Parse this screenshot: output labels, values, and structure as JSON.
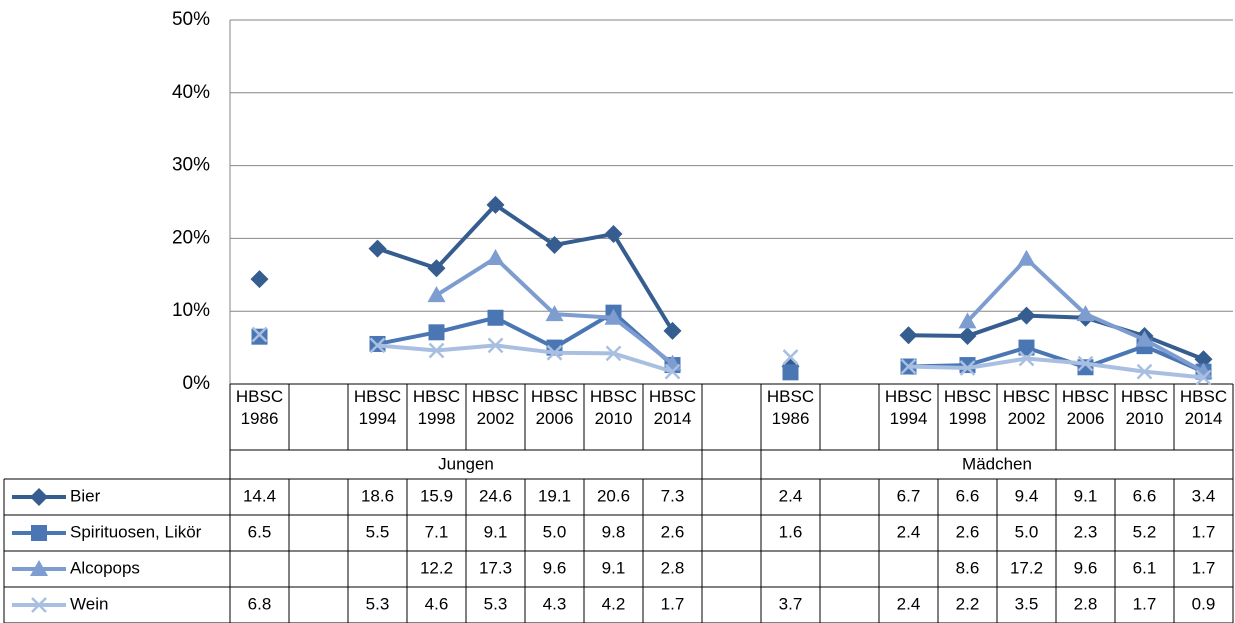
{
  "chart_data": {
    "type": "line",
    "categories": [
      "HBSC 1986",
      null,
      "HBSC 1994",
      "HBSC 1998",
      "HBSC 2002",
      "HBSC 2006",
      "HBSC 2010",
      "HBSC 2014",
      null,
      "HBSC 1986",
      null,
      "HBSC 1994",
      "HBSC 1998",
      "HBSC 2002",
      "HBSC 2006",
      "HBSC 2010",
      "HBSC 2014"
    ],
    "groups": [
      "Jungen",
      "Mädchen"
    ],
    "ylim": [
      0,
      50
    ],
    "yticks": [
      {
        "value": 0,
        "label": "0%"
      },
      {
        "value": 10,
        "label": "10%"
      },
      {
        "value": 20,
        "label": "20%"
      },
      {
        "value": 30,
        "label": "30%"
      },
      {
        "value": 40,
        "label": "40%"
      },
      {
        "value": 50,
        "label": "50%"
      }
    ],
    "grid": true,
    "series": [
      {
        "name": "Bier",
        "color": "#355d8f",
        "marker": "diamond",
        "values": [
          14.4,
          null,
          18.6,
          15.9,
          24.6,
          19.1,
          20.6,
          7.3,
          null,
          2.4,
          null,
          6.7,
          6.6,
          9.4,
          9.1,
          6.6,
          3.4
        ],
        "value_labels": [
          "14.4",
          null,
          "18.6",
          "15.9",
          "24.6",
          "19.1",
          "20.6",
          "7.3",
          null,
          "2.4",
          null,
          "6.7",
          "6.6",
          "9.4",
          "9.1",
          "6.6",
          "3.4"
        ]
      },
      {
        "name": "Spirituosen, Likör",
        "color": "#4a77b4",
        "marker": "square",
        "values": [
          6.5,
          null,
          5.5,
          7.1,
          9.1,
          5.0,
          9.8,
          2.6,
          null,
          1.6,
          null,
          2.4,
          2.6,
          5.0,
          2.3,
          5.2,
          1.7
        ],
        "value_labels": [
          "6.5",
          null,
          "5.5",
          "7.1",
          "9.1",
          "5.0",
          "9.8",
          "2.6",
          null,
          "1.6",
          null,
          "2.4",
          "2.6",
          "5.0",
          "2.3",
          "5.2",
          "1.7"
        ]
      },
      {
        "name": "Alcopops",
        "color": "#7d9dd0",
        "marker": "triangle",
        "values": [
          null,
          null,
          null,
          12.2,
          17.3,
          9.6,
          9.1,
          2.8,
          null,
          null,
          null,
          null,
          8.6,
          17.2,
          9.6,
          6.1,
          1.7
        ],
        "value_labels": [
          null,
          null,
          null,
          "12.2",
          "17.3",
          "9.6",
          "9.1",
          "2.8",
          null,
          null,
          null,
          null,
          "8.6",
          "17.2",
          "9.6",
          "6.1",
          "1.7"
        ]
      },
      {
        "name": "Wein",
        "color": "#a9bfe1",
        "marker": "x",
        "values": [
          6.8,
          null,
          5.3,
          4.6,
          5.3,
          4.3,
          4.2,
          1.7,
          null,
          3.7,
          null,
          2.4,
          2.2,
          3.5,
          2.8,
          1.7,
          0.9
        ],
        "value_labels": [
          "6.8",
          null,
          "5.3",
          "4.6",
          "5.3",
          "4.3",
          "4.2",
          "1.7",
          null,
          "3.7",
          null,
          "2.4",
          "2.2",
          "3.5",
          "2.8",
          "1.7",
          "0.9"
        ]
      }
    ]
  }
}
